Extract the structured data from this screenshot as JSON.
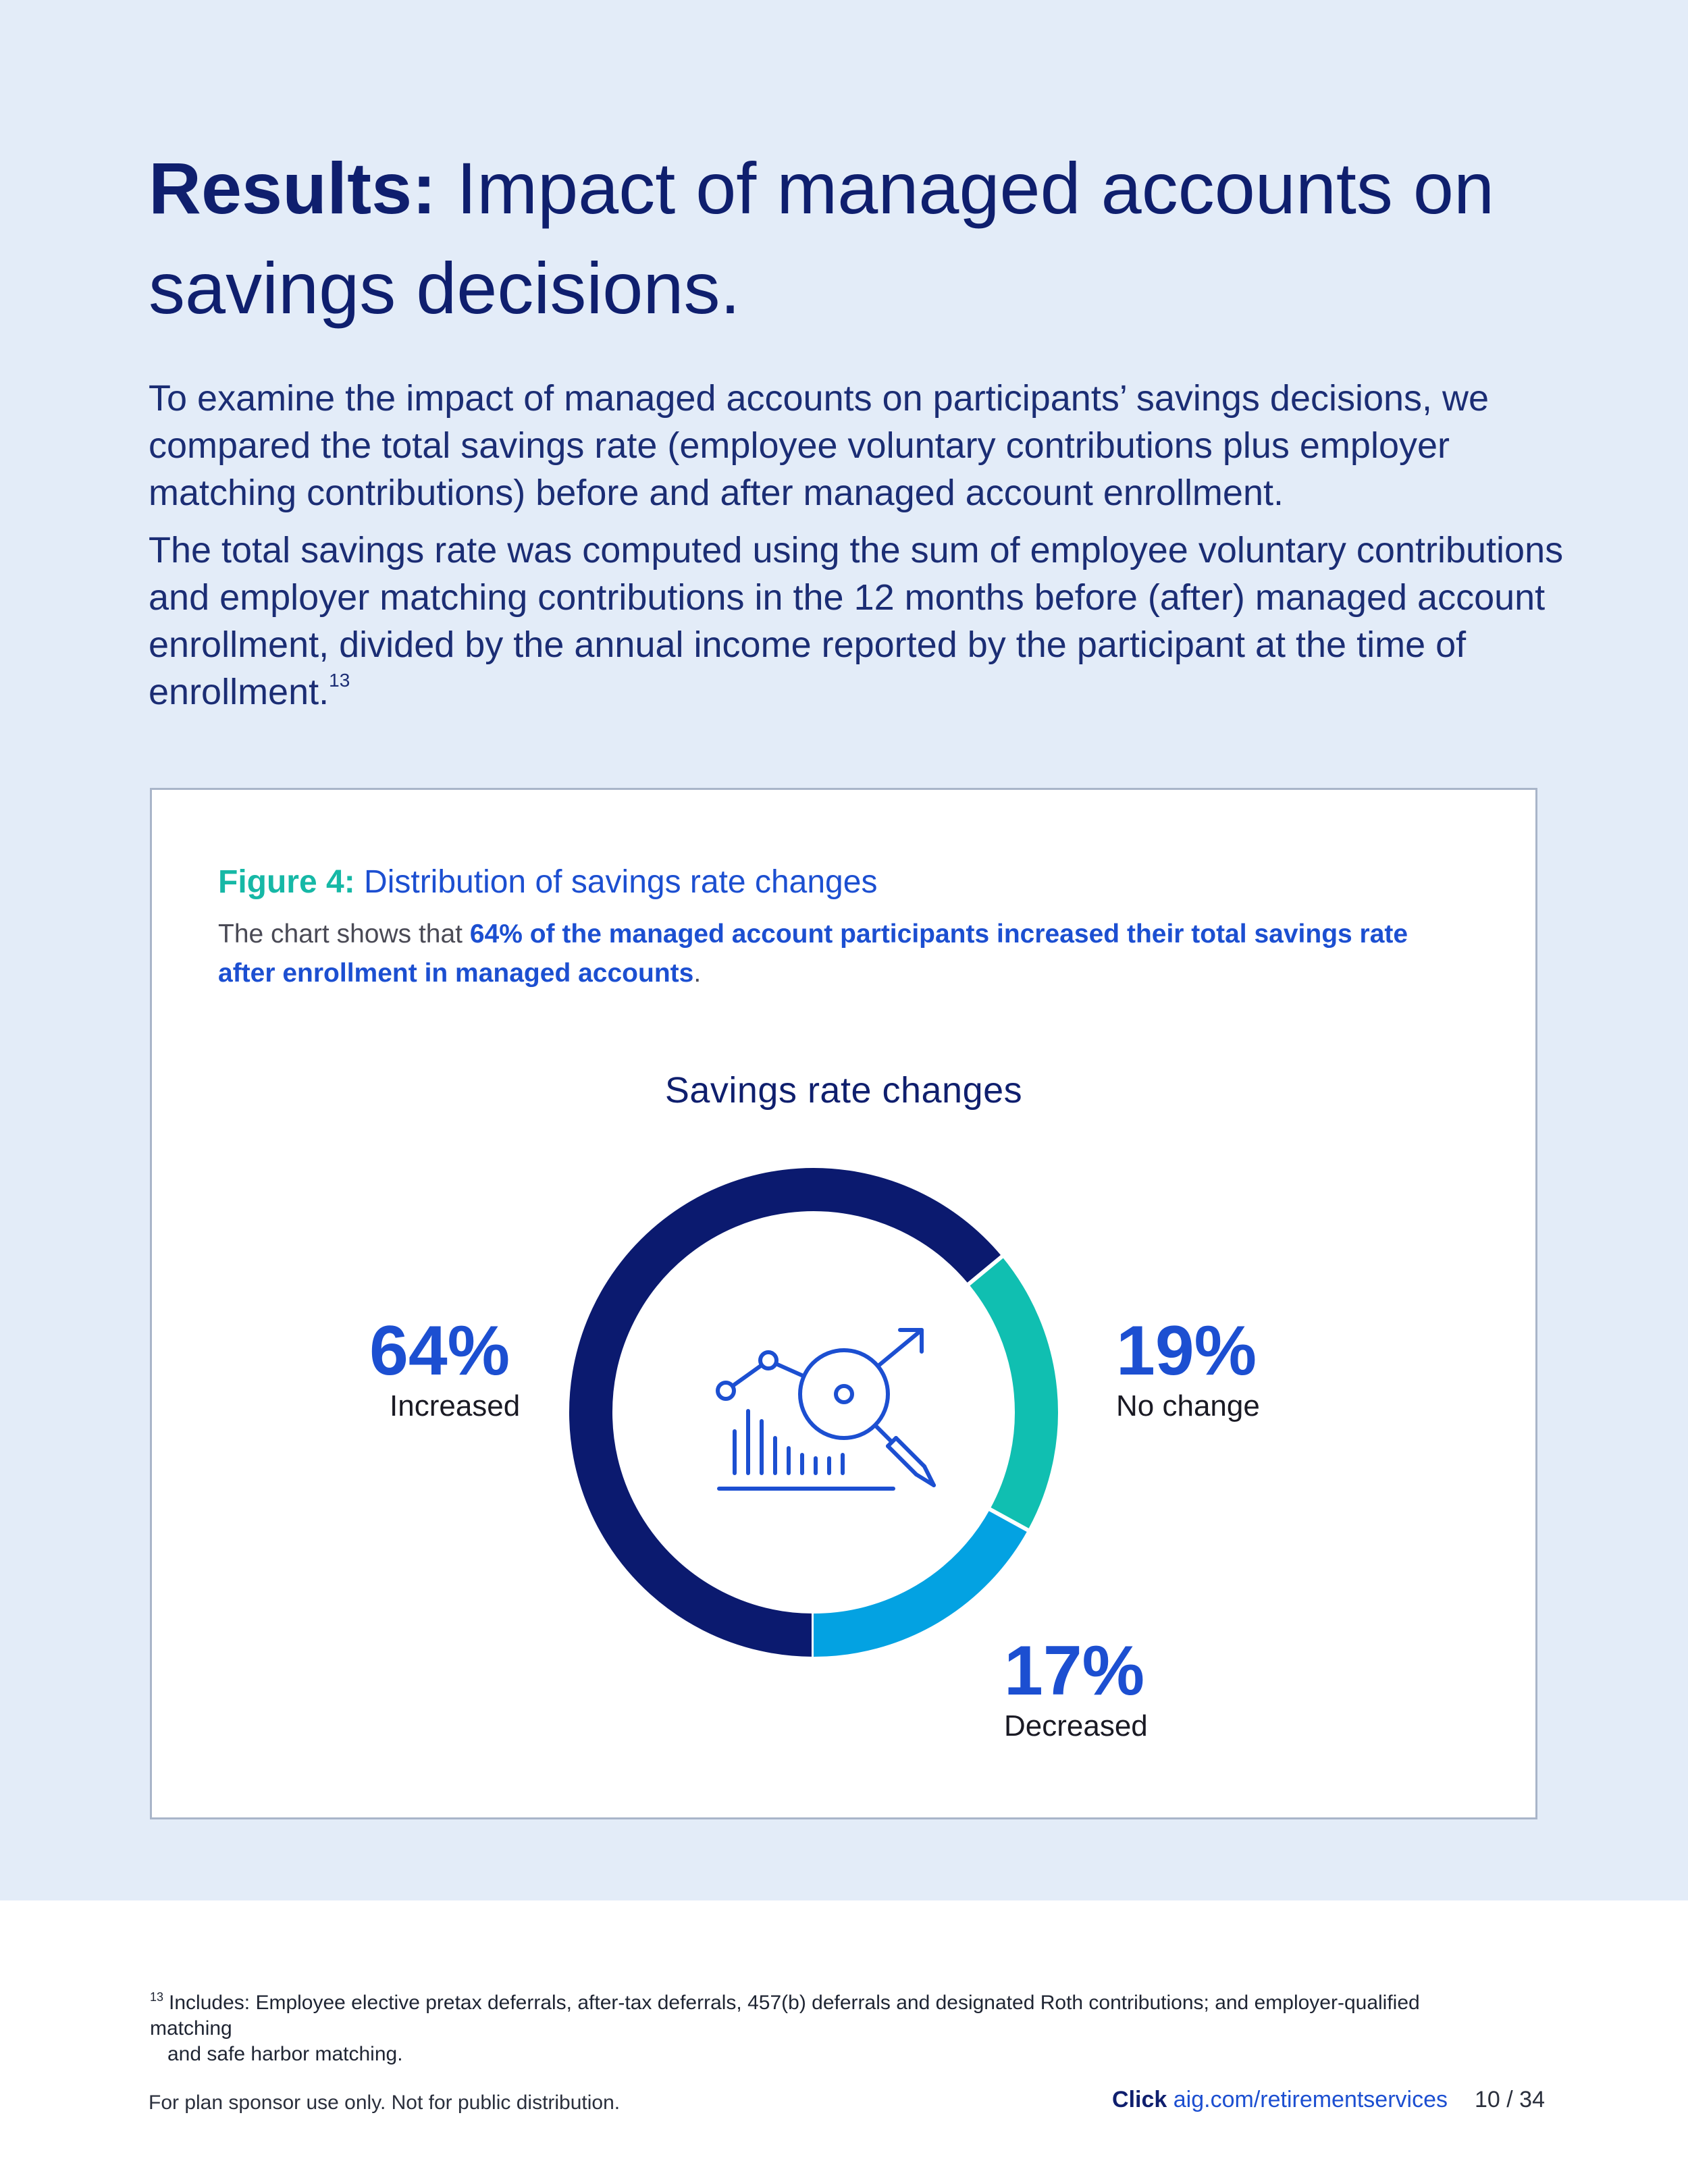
{
  "page": {
    "title_bold": "Results:",
    "title_rest": " Impact of managed accounts on savings decisions.",
    "paragraphs": [
      "To examine the impact of managed accounts on participants’ savings decisions, we compared the total savings rate (employee voluntary contributions plus employer matching contributions) before and after managed account enrollment.",
      "The total savings rate was computed using the sum of employee voluntary contributions and employer matching contributions in the 12 months before (after) managed account enrollment, divided by the annual income reported by the participant at the time of enrollment."
    ],
    "paragraph2_sup": "13"
  },
  "figure": {
    "label": "Figure 4:",
    "title": "Distribution of savings rate changes",
    "desc_plain": "The chart shows that ",
    "desc_highlight": "64% of the managed account participants increased their total savings rate after enrollment in managed accounts",
    "desc_end": ".",
    "center_icon": "analytics-magnifier-icon"
  },
  "chart_data": {
    "type": "pie",
    "title": "Savings rate changes",
    "categories": [
      "Increased",
      "No change",
      "Decreased"
    ],
    "values": [
      64,
      19,
      17
    ],
    "value_labels": [
      "64%",
      "19%",
      "17%"
    ],
    "colors": [
      "#0b1a6f",
      "#10bfb1",
      "#03a2e2"
    ],
    "donut": true,
    "unit": "%"
  },
  "footnote": {
    "sup": "13",
    "line1": "Includes: Employee elective pretax deferrals, after-tax deferrals, 457(b) deferrals and designated Roth contributions; and employer-qualified matching",
    "line2": "and safe harbor matching."
  },
  "footer": {
    "disclaimer": "For plan sponsor use only. Not for public distribution.",
    "click_label": "Click",
    "link_text": "aig.com/retirementservices",
    "page_number": "10 / 34"
  }
}
